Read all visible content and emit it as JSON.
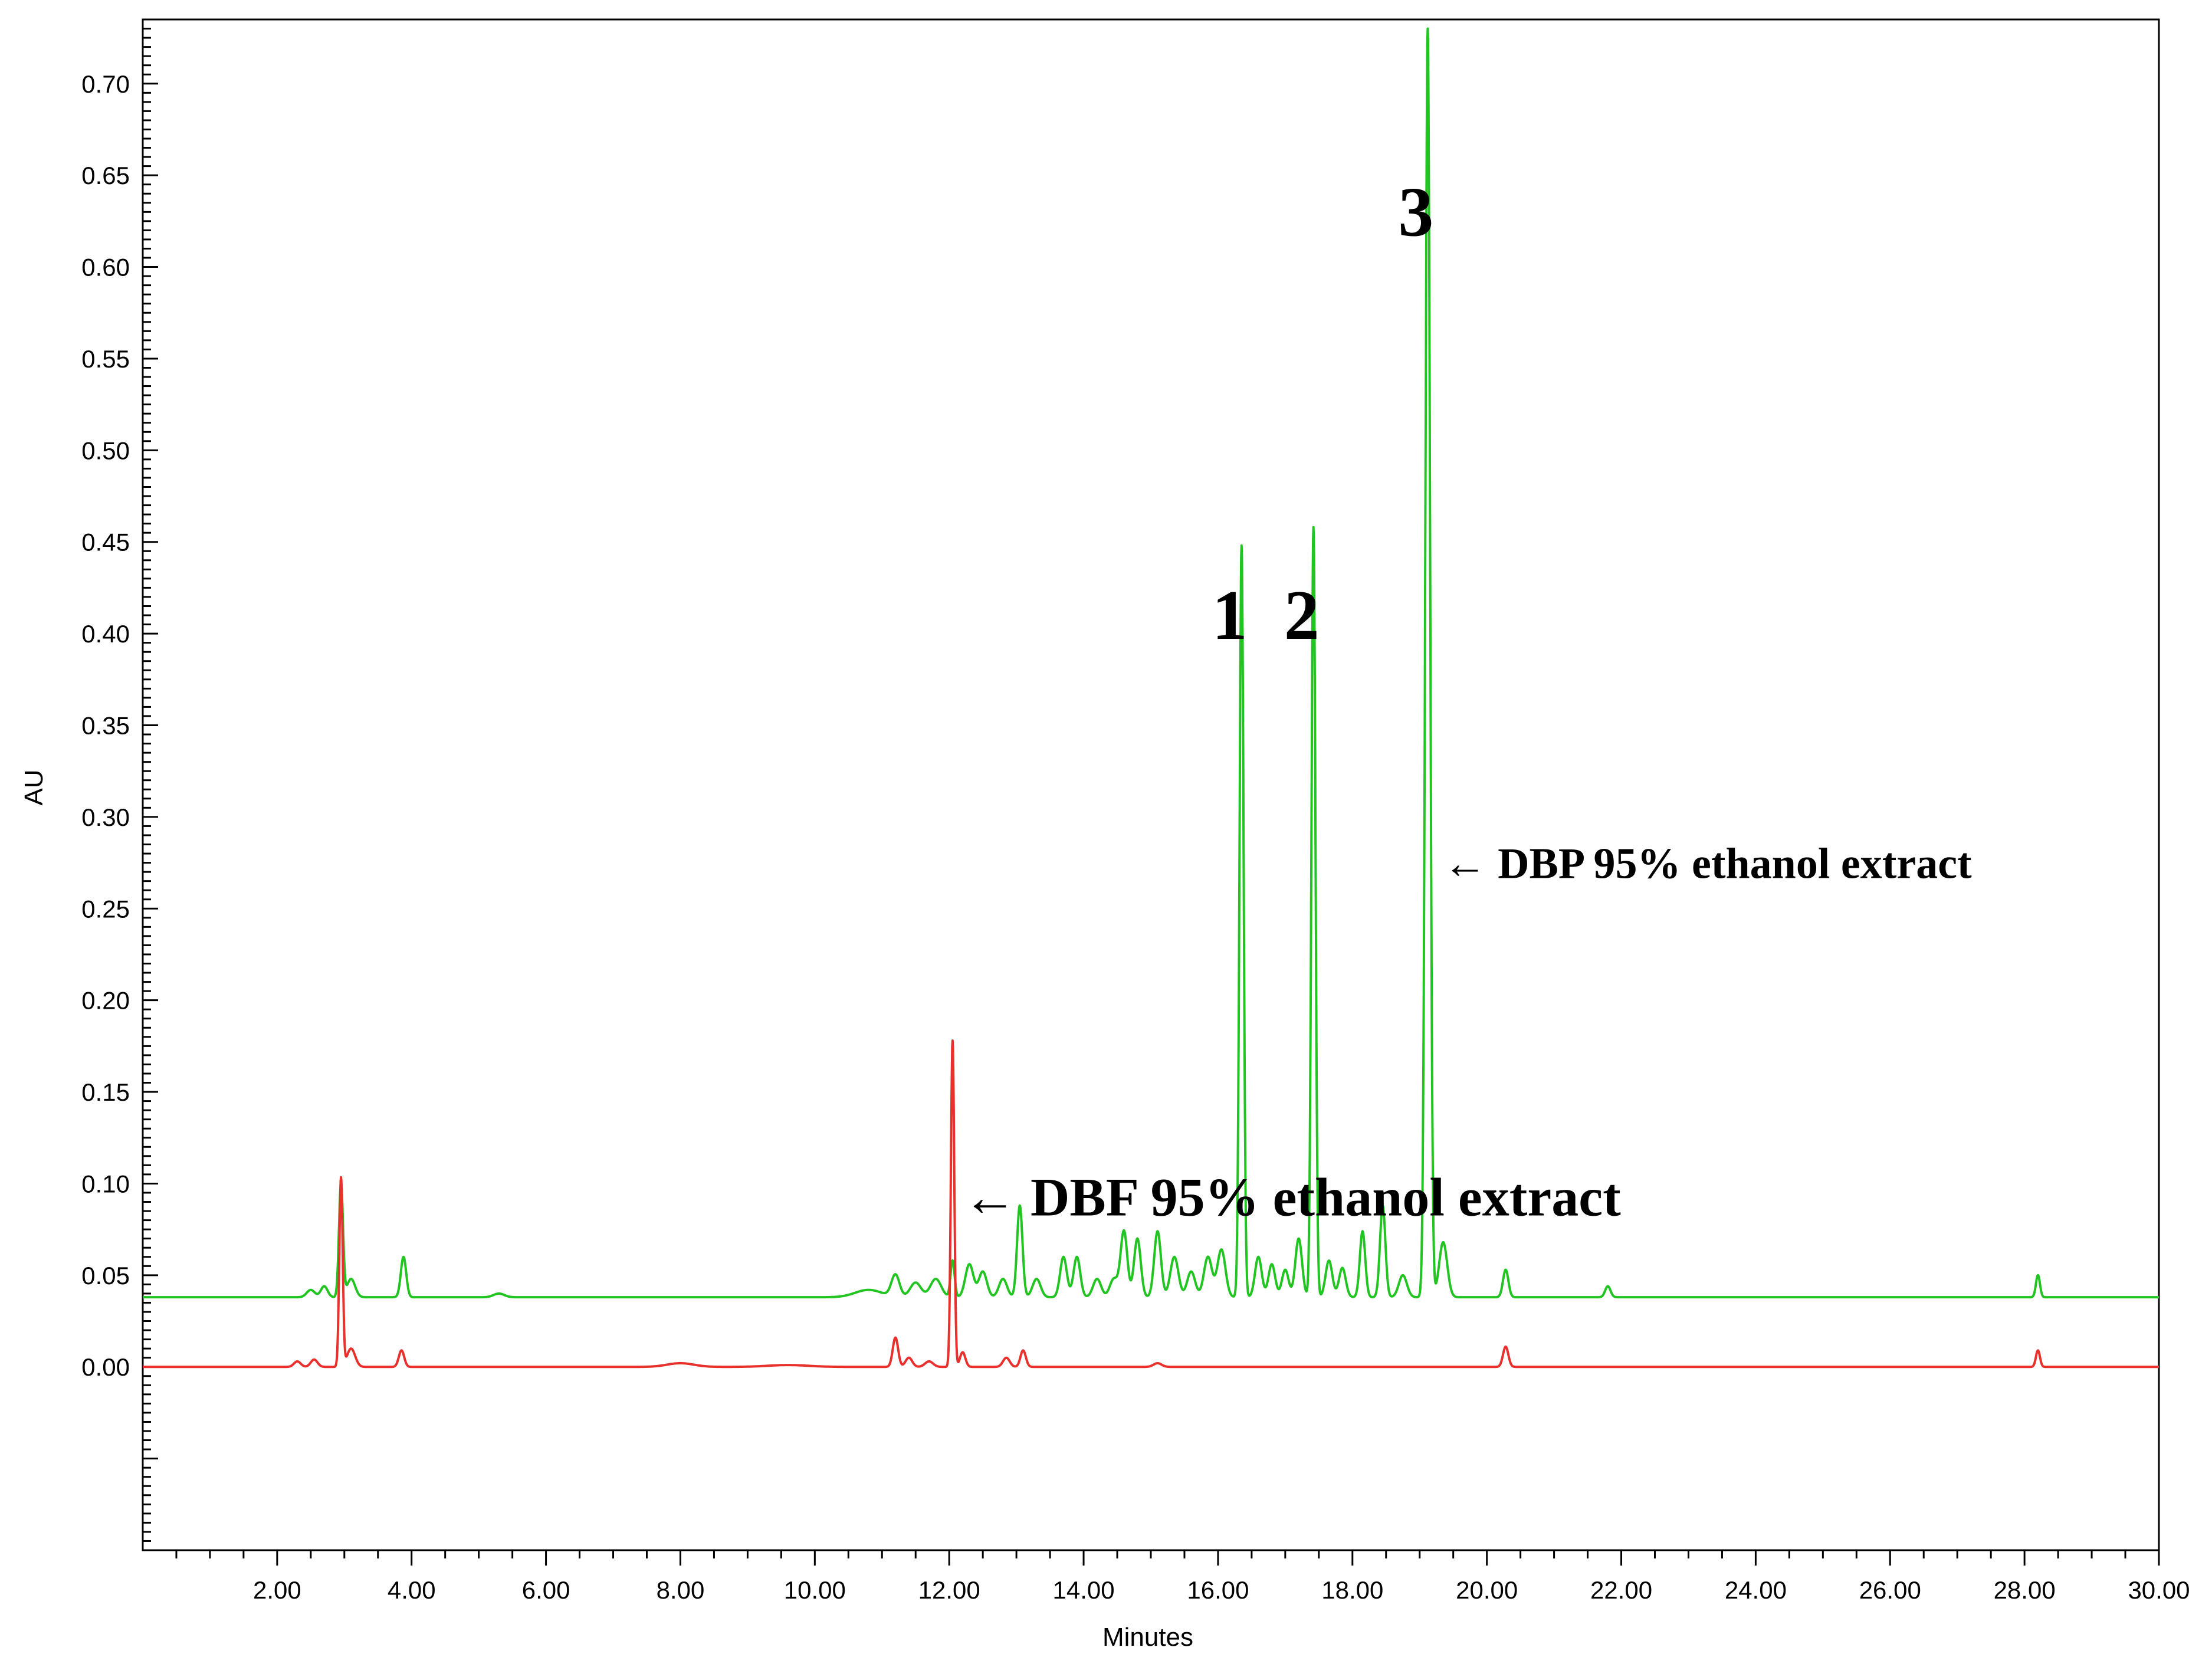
{
  "chart_data": {
    "type": "line",
    "xlabel": "Minutes",
    "ylabel": "AU",
    "xlim": [
      0,
      30
    ],
    "ylim": [
      -0.1,
      0.735
    ],
    "x_ticks": [
      {
        "value": 2,
        "label": "2.00"
      },
      {
        "value": 4,
        "label": "4.00"
      },
      {
        "value": 6,
        "label": "6.00"
      },
      {
        "value": 8,
        "label": "8.00"
      },
      {
        "value": 10,
        "label": "10.00"
      },
      {
        "value": 12,
        "label": "12.00"
      },
      {
        "value": 14,
        "label": "14.00"
      },
      {
        "value": 16,
        "label": "16.00"
      },
      {
        "value": 18,
        "label": "18.00"
      },
      {
        "value": 20,
        "label": "20.00"
      },
      {
        "value": 22,
        "label": "22.00"
      },
      {
        "value": 24,
        "label": "24.00"
      },
      {
        "value": 26,
        "label": "26.00"
      },
      {
        "value": 28,
        "label": "28.00"
      },
      {
        "value": 30,
        "label": "30.00"
      }
    ],
    "y_ticks": [
      {
        "value": 0.0,
        "label": "0.00"
      },
      {
        "value": 0.05,
        "label": "0.05"
      },
      {
        "value": 0.1,
        "label": "0.10"
      },
      {
        "value": 0.15,
        "label": "0.15"
      },
      {
        "value": 0.2,
        "label": "0.20"
      },
      {
        "value": 0.25,
        "label": "0.25"
      },
      {
        "value": 0.3,
        "label": "0.30"
      },
      {
        "value": 0.35,
        "label": "0.35"
      },
      {
        "value": 0.4,
        "label": "0.40"
      },
      {
        "value": 0.45,
        "label": "0.45"
      },
      {
        "value": 0.5,
        "label": "0.50"
      },
      {
        "value": 0.55,
        "label": "0.55"
      },
      {
        "value": 0.6,
        "label": "0.60"
      },
      {
        "value": 0.65,
        "label": "0.65"
      },
      {
        "value": 0.7,
        "label": "0.70"
      }
    ],
    "grid": false,
    "series": [
      {
        "key": "dbp",
        "color": "#22c422",
        "baseline": 0.038,
        "peaks": [
          [
            2.5,
            0.004,
            0.06
          ],
          [
            2.7,
            0.006,
            0.05
          ],
          [
            2.95,
            0.062,
            0.03
          ],
          [
            3.1,
            0.01,
            0.06
          ],
          [
            3.88,
            0.022,
            0.04
          ],
          [
            5.3,
            0.002,
            0.08
          ],
          [
            10.8,
            0.004,
            0.2
          ],
          [
            11.2,
            0.012,
            0.06
          ],
          [
            11.5,
            0.008,
            0.08
          ],
          [
            11.8,
            0.01,
            0.08
          ],
          [
            12.05,
            0.02,
            0.03
          ],
          [
            12.3,
            0.018,
            0.06
          ],
          [
            12.5,
            0.014,
            0.06
          ],
          [
            12.8,
            0.01,
            0.06
          ],
          [
            13.05,
            0.05,
            0.04
          ],
          [
            13.3,
            0.01,
            0.06
          ],
          [
            13.7,
            0.022,
            0.05
          ],
          [
            13.9,
            0.022,
            0.05
          ],
          [
            14.2,
            0.01,
            0.06
          ],
          [
            14.45,
            0.01,
            0.06
          ],
          [
            14.6,
            0.036,
            0.05
          ],
          [
            14.8,
            0.032,
            0.05
          ],
          [
            15.1,
            0.036,
            0.05
          ],
          [
            15.35,
            0.022,
            0.06
          ],
          [
            15.6,
            0.014,
            0.06
          ],
          [
            15.85,
            0.022,
            0.06
          ],
          [
            16.05,
            0.026,
            0.06
          ],
          [
            16.35,
            0.41,
            0.03
          ],
          [
            16.6,
            0.022,
            0.05
          ],
          [
            16.8,
            0.018,
            0.05
          ],
          [
            17.0,
            0.015,
            0.05
          ],
          [
            17.2,
            0.032,
            0.05
          ],
          [
            17.42,
            0.42,
            0.03
          ],
          [
            17.65,
            0.02,
            0.05
          ],
          [
            17.85,
            0.016,
            0.05
          ],
          [
            18.15,
            0.036,
            0.04
          ],
          [
            18.45,
            0.05,
            0.04
          ],
          [
            18.75,
            0.012,
            0.06
          ],
          [
            19.12,
            0.692,
            0.035
          ],
          [
            19.35,
            0.03,
            0.06
          ],
          [
            20.28,
            0.015,
            0.04
          ],
          [
            21.8,
            0.006,
            0.04
          ],
          [
            28.2,
            0.012,
            0.03
          ]
        ]
      },
      {
        "key": "dbf",
        "color": "#e8302c",
        "baseline": 0.0,
        "peaks": [
          [
            2.3,
            0.003,
            0.05
          ],
          [
            2.55,
            0.004,
            0.05
          ],
          [
            2.95,
            0.103,
            0.025
          ],
          [
            3.1,
            0.01,
            0.06
          ],
          [
            3.85,
            0.009,
            0.04
          ],
          [
            8.0,
            0.002,
            0.2
          ],
          [
            9.6,
            0.001,
            0.3
          ],
          [
            11.2,
            0.016,
            0.04
          ],
          [
            11.4,
            0.005,
            0.05
          ],
          [
            11.7,
            0.003,
            0.06
          ],
          [
            12.05,
            0.178,
            0.025
          ],
          [
            12.2,
            0.008,
            0.04
          ],
          [
            12.85,
            0.005,
            0.05
          ],
          [
            13.1,
            0.009,
            0.04
          ],
          [
            15.1,
            0.002,
            0.06
          ],
          [
            20.28,
            0.011,
            0.04
          ],
          [
            28.2,
            0.009,
            0.03
          ]
        ]
      }
    ],
    "peak_labels": [
      {
        "text": "1",
        "x": 16.35,
        "y": 0.41
      },
      {
        "text": "2",
        "x": 17.42,
        "y": 0.41
      },
      {
        "text": "3",
        "x": 19.12,
        "y": 0.63
      }
    ],
    "annotations": [
      {
        "text": "← DBP 95% ethanol extract",
        "x": 19.35,
        "y": 0.275,
        "size": "medium"
      },
      {
        "text": "← DBF 95% ethanol extract",
        "x": 12.2,
        "y": 0.093,
        "size": "large"
      }
    ]
  }
}
